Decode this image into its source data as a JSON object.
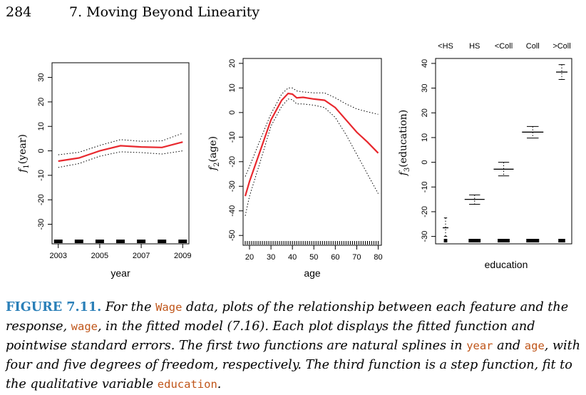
{
  "header": {
    "page_number": "284",
    "chapter_title": "7. Moving Beyond Linearity"
  },
  "chart_data": [
    {
      "type": "line",
      "xlabel": "year",
      "ylabel_main": "f",
      "ylabel_sub": "1",
      "ylabel_arg": "(year)",
      "xlim": [
        2002.7,
        2009.3
      ],
      "ylim": [
        -38,
        36
      ],
      "xticks": [
        2003,
        2005,
        2007,
        2009
      ],
      "yticks": [
        -30,
        -20,
        -10,
        0,
        10,
        20,
        30
      ],
      "series": [
        {
          "role": "fit",
          "color": "#e8282e",
          "x": [
            2003,
            2004,
            2005,
            2006,
            2007,
            2008,
            2009
          ],
          "y": [
            -4.2,
            -2.9,
            0,
            2.1,
            1.6,
            1.4,
            3.6
          ]
        },
        {
          "role": "upper",
          "color": "#000000",
          "x": [
            2003,
            2004,
            2005,
            2006,
            2007,
            2008,
            2009
          ],
          "y": [
            -1.6,
            -0.6,
            2.2,
            4.6,
            3.9,
            4.1,
            7.2
          ]
        },
        {
          "role": "lower",
          "color": "#000000",
          "x": [
            2003,
            2004,
            2005,
            2006,
            2007,
            2008,
            2009
          ],
          "y": [
            -6.8,
            -5.2,
            -2.2,
            -0.4,
            -0.7,
            -1.3,
            0
          ]
        }
      ],
      "rug": [
        2003,
        2004,
        2005,
        2006,
        2007,
        2008,
        2009
      ]
    },
    {
      "type": "line",
      "xlabel": "age",
      "ylabel_main": "f",
      "ylabel_sub": "2",
      "ylabel_arg": "(age)",
      "xlim": [
        17,
        81.5
      ],
      "ylim": [
        -54,
        22
      ],
      "xticks": [
        20,
        30,
        40,
        50,
        60,
        70,
        80
      ],
      "yticks": [
        -50,
        -40,
        -30,
        -20,
        -10,
        0,
        10,
        20
      ],
      "series": [
        {
          "role": "fit",
          "color": "#e8282e",
          "x": [
            18,
            20,
            25,
            30,
            35,
            38,
            40,
            42,
            45,
            50,
            55,
            60,
            65,
            70,
            75,
            80
          ],
          "y": [
            -34,
            -28,
            -15.5,
            -3,
            5,
            7.8,
            7.5,
            6,
            6.2,
            5.5,
            5,
            2,
            -3,
            -8,
            -12,
            -16.5
          ]
        },
        {
          "role": "upper",
          "color": "#000000",
          "x": [
            18,
            20,
            25,
            30,
            35,
            38,
            40,
            42,
            45,
            50,
            55,
            60,
            65,
            70,
            75,
            80
          ],
          "y": [
            -26,
            -22,
            -11,
            -0.5,
            7.5,
            10,
            10,
            8.8,
            8.4,
            8,
            8,
            6,
            3.5,
            1.5,
            0.3,
            -0.7
          ]
        },
        {
          "role": "lower",
          "color": "#000000",
          "x": [
            18,
            20,
            25,
            30,
            35,
            38,
            40,
            42,
            45,
            50,
            55,
            60,
            65,
            70,
            75,
            80
          ],
          "y": [
            -42,
            -34,
            -20,
            -5.5,
            2.5,
            5.5,
            5.2,
            3.5,
            3.5,
            3,
            2,
            -2,
            -9,
            -17,
            -25,
            -33
          ]
        }
      ],
      "rug_range": [
        18,
        80
      ]
    },
    {
      "type": "step",
      "xlabel": "education",
      "ylabel_main": "f",
      "ylabel_sub": "3",
      "ylabel_arg": "(education)",
      "ylim": [
        -33,
        42
      ],
      "yticks": [
        -30,
        -20,
        -10,
        0,
        10,
        20,
        30,
        40
      ],
      "categories": [
        "<HS",
        "HS",
        "<Coll",
        "Coll",
        ">Coll"
      ],
      "values": [
        -26.5,
        -15,
        -2.8,
        12.2,
        36.5
      ],
      "upper": [
        -22.5,
        -13.2,
        0,
        14.5,
        39.5
      ],
      "lower": [
        -30,
        -17,
        -5.5,
        9.8,
        33.5
      ]
    }
  ],
  "caption": {
    "label": "FIGURE 7.11.",
    "t1": " For the ",
    "c1": "Wage",
    "t2": " data, plots of the relationship between each feature and the response, ",
    "c2": "wage",
    "t3": ", in the fitted model (7.16). Each plot displays the fitted function and pointwise standard errors. The first two functions are natural splines in ",
    "c3": "year",
    "t4": " and ",
    "c4": "age",
    "t5": ", with four and five degrees of freedom, respectively. The third function is a step function, fit to the qualitative variable ",
    "c5": "education",
    "t6": "."
  }
}
